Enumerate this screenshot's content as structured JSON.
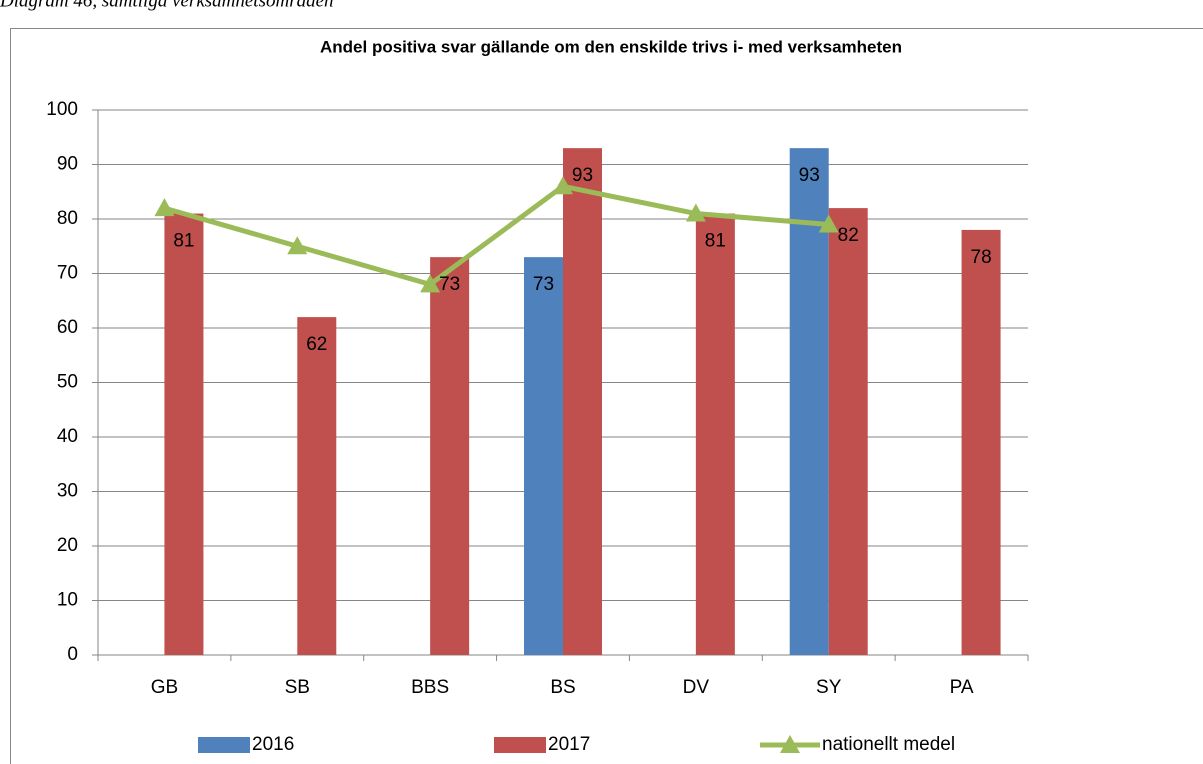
{
  "caption": "Diagram 46, samtliga verksamhetsområden",
  "chart_data": {
    "type": "bar",
    "title": "Andel positiva svar gällande om den enskilde trivs i- med verksamheten",
    "categories": [
      "GB",
      "SB",
      "BBS",
      "BS",
      "DV",
      "SY",
      "PA"
    ],
    "series": [
      {
        "name": "2016",
        "color": "#4f81bd",
        "values": [
          null,
          null,
          null,
          73,
          null,
          93,
          null
        ]
      },
      {
        "name": "2017",
        "color": "#c0504d",
        "values": [
          81,
          62,
          73,
          93,
          81,
          82,
          78
        ]
      },
      {
        "name": "nationellt medel",
        "type": "line",
        "color": "#9bbb59",
        "values": [
          82,
          75,
          68,
          86,
          81,
          79,
          null
        ]
      }
    ],
    "ylim": [
      0,
      100
    ],
    "yticks": [
      0,
      10,
      20,
      30,
      40,
      50,
      60,
      70,
      80,
      90,
      100
    ],
    "grid": true,
    "legend": "bottom"
  }
}
